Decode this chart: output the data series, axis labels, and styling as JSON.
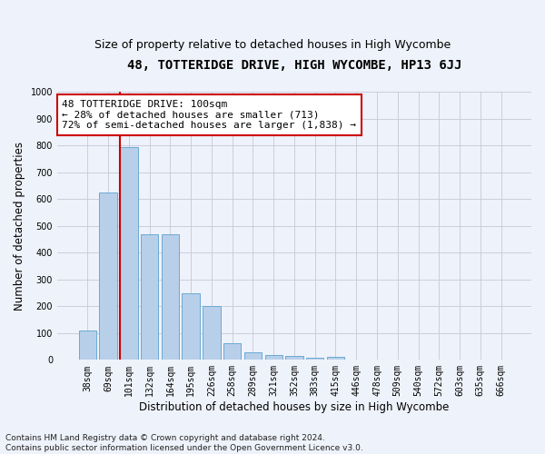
{
  "title": "48, TOTTERIDGE DRIVE, HIGH WYCOMBE, HP13 6JJ",
  "subtitle": "Size of property relative to detached houses in High Wycombe",
  "xlabel": "Distribution of detached houses by size in High Wycombe",
  "ylabel": "Number of detached properties",
  "categories": [
    "38sqm",
    "69sqm",
    "101sqm",
    "132sqm",
    "164sqm",
    "195sqm",
    "226sqm",
    "258sqm",
    "289sqm",
    "321sqm",
    "352sqm",
    "383sqm",
    "415sqm",
    "446sqm",
    "478sqm",
    "509sqm",
    "540sqm",
    "572sqm",
    "603sqm",
    "635sqm",
    "666sqm"
  ],
  "values": [
    110,
    625,
    795,
    470,
    470,
    250,
    200,
    62,
    28,
    18,
    13,
    7,
    10,
    0,
    0,
    0,
    0,
    0,
    0,
    0,
    0
  ],
  "bar_color": "#b8cfea",
  "bar_edge_color": "#6aaad4",
  "vline_color": "#cc0000",
  "annotation_text": "48 TOTTERIDGE DRIVE: 100sqm\n← 28% of detached houses are smaller (713)\n72% of semi-detached houses are larger (1,838) →",
  "annotation_box_color": "#ffffff",
  "annotation_box_edge": "#cc0000",
  "ylim": [
    0,
    1000
  ],
  "yticks": [
    0,
    100,
    200,
    300,
    400,
    500,
    600,
    700,
    800,
    900,
    1000
  ],
  "grid_color": "#c8c8d8",
  "bg_color": "#eef2fa",
  "footnote": "Contains HM Land Registry data © Crown copyright and database right 2024.\nContains public sector information licensed under the Open Government Licence v3.0.",
  "title_fontsize": 10,
  "subtitle_fontsize": 9,
  "label_fontsize": 8.5,
  "tick_fontsize": 7,
  "annot_fontsize": 8,
  "footnote_fontsize": 6.5
}
